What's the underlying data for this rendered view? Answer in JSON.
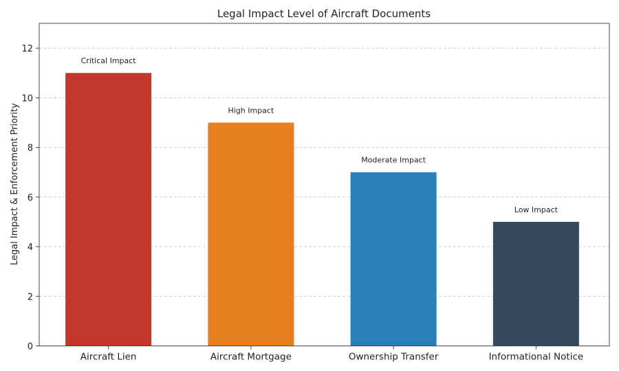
{
  "chart_data": {
    "type": "bar",
    "title": "Legal Impact Level of Aircraft Documents",
    "xlabel": "",
    "ylabel": "Legal Impact & Enforcement Priority",
    "ylim": [
      0,
      13
    ],
    "yticks": [
      0,
      2,
      4,
      6,
      8,
      10,
      12
    ],
    "grid": true,
    "categories": [
      "Aircraft Lien",
      "Aircraft Mortgage",
      "Ownership Transfer",
      "Informational Notice"
    ],
    "values": [
      11,
      9,
      7,
      5
    ],
    "annotations": [
      "Critical Impact",
      "High Impact",
      "Moderate Impact",
      "Low Impact"
    ],
    "colors": [
      "#c0392b",
      "#e67e22",
      "#2980b9",
      "#34495e"
    ]
  }
}
